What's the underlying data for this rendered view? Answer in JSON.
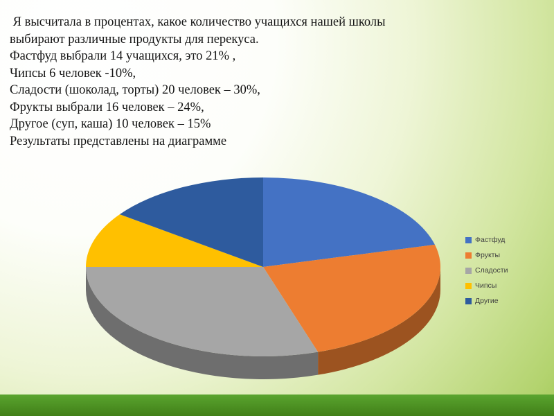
{
  "slide": {
    "paragraph_lines": [
      " Я высчитала в процентах, какое количество учащихся нашей школы",
      "выбирают различные продукты для перекуса.",
      "Фастфуд выбрали 14 учащихся, это 21% ,",
      "Чипсы 6 человек -10%,",
      "Сладости (шоколад, торты) 20 человек – 30%,",
      "Фрукты выбрали 16 человек – 24%,",
      "Другое (суп, каша) 10 человек – 15%",
      "Результаты представлены на диаграмме"
    ]
  },
  "chart_data": {
    "type": "pie",
    "style": "3d",
    "labels": [
      "Фастфуд",
      "Фрукты",
      "Сладости",
      "Чипсы",
      "Другие"
    ],
    "values": [
      21,
      24,
      30,
      10,
      15
    ],
    "student_counts": [
      14,
      16,
      20,
      6,
      10
    ],
    "colors": [
      "#4472C4",
      "#ED7D31",
      "#A6A6A6",
      "#FFC000",
      "#2E5B9E"
    ],
    "start_angle_deg": 0,
    "direction": "clockwise",
    "legend_position": "right",
    "accent_green_bar": "#417F18"
  }
}
